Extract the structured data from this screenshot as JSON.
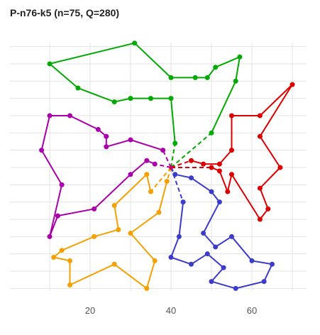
{
  "chart_data": {
    "type": "line",
    "title": "P-n76-k5 (n=75, Q=280)",
    "xlabel": "",
    "ylabel": "",
    "xlim": [
      0,
      78
    ],
    "ylim": [
      4,
      80
    ],
    "x_ticks": [
      20,
      40,
      60
    ],
    "grid": true,
    "depot": {
      "x": 40,
      "y": 40,
      "color": "#cc0066"
    },
    "series": [
      {
        "color": "#00aa00",
        "depot_link_start": [
          50,
          50
        ],
        "depot_link_end": [
          41,
          47
        ],
        "points": [
          [
            50,
            50
          ],
          [
            56,
            65
          ],
          [
            57,
            72
          ],
          [
            51,
            69
          ],
          [
            49,
            66
          ],
          [
            46,
            66
          ],
          [
            40,
            66
          ],
          [
            31,
            76
          ],
          [
            10,
            70
          ],
          [
            17,
            63
          ],
          [
            26,
            59
          ],
          [
            30,
            60
          ],
          [
            35,
            60
          ],
          [
            40,
            60
          ],
          [
            41,
            47
          ]
        ]
      },
      {
        "color": "#dd0000",
        "depot_link_start": [
          45,
          42
        ],
        "depot_link_end": [
          50,
          40
        ],
        "points": [
          [
            45,
            42
          ],
          [
            48,
            41
          ],
          [
            52,
            41
          ],
          [
            55,
            45
          ],
          [
            55,
            55
          ],
          [
            62,
            55
          ],
          [
            70,
            64
          ],
          [
            62,
            49
          ],
          [
            67,
            40
          ],
          [
            62,
            34
          ],
          [
            64,
            28
          ],
          [
            62,
            25
          ],
          [
            55,
            38
          ],
          [
            54,
            33
          ],
          [
            52,
            39
          ],
          [
            50,
            40
          ]
        ]
      },
      {
        "color": "#3b3bcc",
        "depot_link_start": [
          41,
          38
        ],
        "depot_link_end": [
          43,
          30
        ],
        "points": [
          [
            41,
            38
          ],
          [
            45,
            37
          ],
          [
            50,
            33
          ],
          [
            52,
            30
          ],
          [
            48,
            21
          ],
          [
            51,
            17
          ],
          [
            55,
            20
          ],
          [
            60,
            13
          ],
          [
            65,
            12
          ],
          [
            63,
            7
          ],
          [
            56,
            5
          ],
          [
            50,
            7
          ],
          [
            53,
            11
          ],
          [
            49,
            15
          ],
          [
            45,
            12
          ],
          [
            40,
            14
          ],
          [
            42,
            20
          ],
          [
            43,
            30
          ]
        ]
      },
      {
        "color": "#f5a000",
        "depot_link_start": [
          39,
          36
        ],
        "depot_link_end": [
          35,
          33
        ],
        "points": [
          [
            39,
            36
          ],
          [
            37,
            27
          ],
          [
            30,
            21
          ],
          [
            36,
            13
          ],
          [
            34,
            5
          ],
          [
            26,
            12
          ],
          [
            15,
            6
          ],
          [
            15,
            13
          ],
          [
            11,
            14
          ],
          [
            13,
            16
          ],
          [
            21,
            20
          ],
          [
            27,
            22
          ],
          [
            26,
            29
          ],
          [
            34,
            38
          ],
          [
            35,
            33
          ]
        ]
      },
      {
        "color": "#aa00aa",
        "depot_link_start": [
          36,
          41
        ],
        "depot_link_end": [
          38,
          45
        ],
        "points": [
          [
            36,
            41
          ],
          [
            34,
            42
          ],
          [
            30,
            38
          ],
          [
            21,
            28
          ],
          [
            12,
            26
          ],
          [
            10,
            20
          ],
          [
            13,
            35
          ],
          [
            8,
            45
          ],
          [
            10,
            55
          ],
          [
            15,
            55
          ],
          [
            22,
            51
          ],
          [
            24,
            49
          ],
          [
            24,
            46
          ],
          [
            30,
            48
          ],
          [
            38,
            45
          ]
        ]
      }
    ]
  }
}
